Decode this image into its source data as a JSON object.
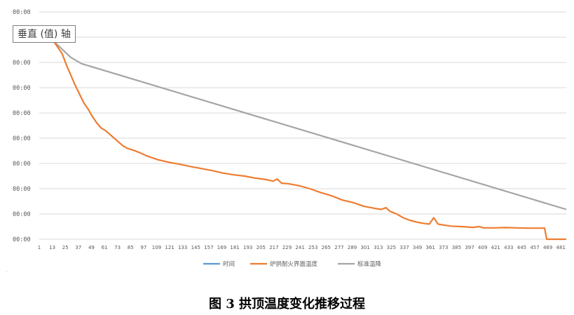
{
  "caption": "图 3  拱顶温度变化推移过程",
  "corner_mark": "·",
  "chart_data": {
    "type": "line",
    "title": "",
    "xlabel": "",
    "ylabel": "垂直 (值) 轴",
    "y_tick_labels": [
      "00:00",
      "00:00",
      "00:00",
      "00:00",
      "00:00",
      "00:00",
      "00:00",
      "00:00",
      "00:00",
      "00:00"
    ],
    "x_tick_labels": [
      1,
      13,
      25,
      37,
      49,
      61,
      73,
      85,
      97,
      109,
      121,
      133,
      145,
      157,
      169,
      181,
      193,
      205,
      217,
      229,
      241,
      253,
      265,
      277,
      289,
      301,
      313,
      325,
      337,
      349,
      361,
      373,
      385,
      397,
      409,
      421,
      433,
      445,
      457,
      469,
      481
    ],
    "xlim": [
      1,
      486
    ],
    "ylim": [
      0,
      9
    ],
    "grid": "horizontal",
    "legend_position": "bottom",
    "series": [
      {
        "name": "时间",
        "color": "#5b9bd5",
        "points": []
      },
      {
        "name": "炉拱耐火界面温度",
        "color": "#ed7d31",
        "points": [
          [
            14,
            7.85
          ],
          [
            18,
            7.6
          ],
          [
            22,
            7.35
          ],
          [
            26,
            6.9
          ],
          [
            30,
            6.5
          ],
          [
            34,
            6.1
          ],
          [
            38,
            5.75
          ],
          [
            42,
            5.4
          ],
          [
            46,
            5.15
          ],
          [
            50,
            4.85
          ],
          [
            54,
            4.6
          ],
          [
            58,
            4.4
          ],
          [
            62,
            4.3
          ],
          [
            66,
            4.15
          ],
          [
            70,
            4.0
          ],
          [
            74,
            3.85
          ],
          [
            78,
            3.7
          ],
          [
            82,
            3.6
          ],
          [
            88,
            3.52
          ],
          [
            95,
            3.4
          ],
          [
            100,
            3.3
          ],
          [
            110,
            3.15
          ],
          [
            120,
            3.05
          ],
          [
            130,
            2.97
          ],
          [
            140,
            2.88
          ],
          [
            150,
            2.8
          ],
          [
            160,
            2.72
          ],
          [
            170,
            2.62
          ],
          [
            180,
            2.55
          ],
          [
            190,
            2.5
          ],
          [
            200,
            2.42
          ],
          [
            210,
            2.36
          ],
          [
            216,
            2.3
          ],
          [
            220,
            2.38
          ],
          [
            224,
            2.22
          ],
          [
            230,
            2.2
          ],
          [
            240,
            2.12
          ],
          [
            250,
            2.0
          ],
          [
            260,
            1.85
          ],
          [
            270,
            1.72
          ],
          [
            280,
            1.55
          ],
          [
            290,
            1.45
          ],
          [
            300,
            1.3
          ],
          [
            310,
            1.22
          ],
          [
            316,
            1.18
          ],
          [
            320,
            1.25
          ],
          [
            324,
            1.1
          ],
          [
            330,
            1.0
          ],
          [
            336,
            0.85
          ],
          [
            342,
            0.75
          ],
          [
            350,
            0.66
          ],
          [
            356,
            0.62
          ],
          [
            360,
            0.6
          ],
          [
            364,
            0.85
          ],
          [
            368,
            0.6
          ],
          [
            372,
            0.57
          ],
          [
            380,
            0.52
          ],
          [
            390,
            0.5
          ],
          [
            400,
            0.47
          ],
          [
            406,
            0.5
          ],
          [
            410,
            0.45
          ],
          [
            420,
            0.45
          ],
          [
            430,
            0.46
          ],
          [
            440,
            0.45
          ],
          [
            450,
            0.44
          ],
          [
            460,
            0.44
          ],
          [
            466,
            0.44
          ],
          [
            468,
            0.0
          ],
          [
            486,
            0.0
          ]
        ]
      },
      {
        "name": "标准温降",
        "color": "#a5a5a5",
        "points": [
          [
            14,
            7.85
          ],
          [
            30,
            7.2
          ],
          [
            40,
            6.95
          ],
          [
            486,
            1.18
          ]
        ]
      }
    ]
  }
}
